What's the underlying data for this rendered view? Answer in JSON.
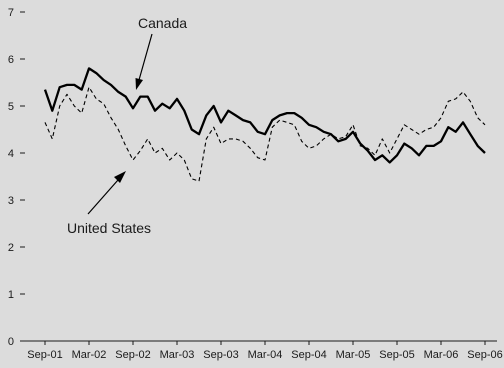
{
  "chart_data": {
    "type": "line",
    "title": "",
    "xlabel": "",
    "ylabel": "",
    "ylim": [
      0,
      7
    ],
    "yticks": [
      0,
      1,
      2,
      3,
      4,
      5,
      6,
      7
    ],
    "xtick_labels": [
      "Sep-01",
      "Mar-02",
      "Sep-02",
      "Mar-03",
      "Sep-03",
      "Mar-04",
      "Sep-04",
      "Mar-05",
      "Sep-05",
      "Mar-06",
      "Sep-06"
    ],
    "x_start": "2001-09",
    "x_end": "2006-09",
    "grid": false,
    "legend": "none (series identified by arrow annotations)",
    "colors": {
      "background": "#dcdcdc",
      "line": "#000000",
      "text": "#1a1a1a"
    },
    "series": [
      {
        "name": "Canada",
        "style": "solid",
        "values": [
          5.35,
          4.9,
          5.4,
          5.45,
          5.45,
          5.35,
          5.8,
          5.7,
          5.55,
          5.45,
          5.3,
          5.2,
          4.95,
          5.2,
          5.2,
          4.9,
          5.05,
          4.95,
          5.15,
          4.9,
          4.5,
          4.4,
          4.8,
          5.0,
          4.65,
          4.9,
          4.8,
          4.7,
          4.65,
          4.45,
          4.4,
          4.7,
          4.8,
          4.85,
          4.85,
          4.75,
          4.6,
          4.55,
          4.45,
          4.4,
          4.25,
          4.3,
          4.45,
          4.2,
          4.05,
          3.85,
          3.95,
          3.8,
          3.95,
          4.2,
          4.1,
          3.95,
          4.15,
          4.15,
          4.25,
          4.55,
          4.45,
          4.65,
          4.4,
          4.15,
          4.0
        ]
      },
      {
        "name": "United States",
        "style": "dashed",
        "values": [
          4.65,
          4.3,
          5.0,
          5.25,
          5.0,
          4.85,
          5.4,
          5.15,
          5.05,
          4.75,
          4.5,
          4.15,
          3.85,
          4.05,
          4.3,
          4.0,
          4.1,
          3.85,
          4.0,
          3.85,
          3.45,
          3.4,
          4.3,
          4.55,
          4.2,
          4.3,
          4.3,
          4.25,
          4.1,
          3.9,
          3.85,
          4.55,
          4.7,
          4.65,
          4.6,
          4.25,
          4.1,
          4.15,
          4.3,
          4.4,
          4.3,
          4.35,
          4.6,
          4.15,
          4.1,
          3.95,
          4.3,
          4.0,
          4.3,
          4.6,
          4.5,
          4.4,
          4.5,
          4.55,
          4.75,
          5.1,
          5.15,
          5.3,
          5.1,
          4.75,
          4.6
        ]
      }
    ],
    "annotations": [
      {
        "label": "Canada",
        "target_series": "Canada"
      },
      {
        "label": "United States",
        "target_series": "United States"
      }
    ]
  }
}
